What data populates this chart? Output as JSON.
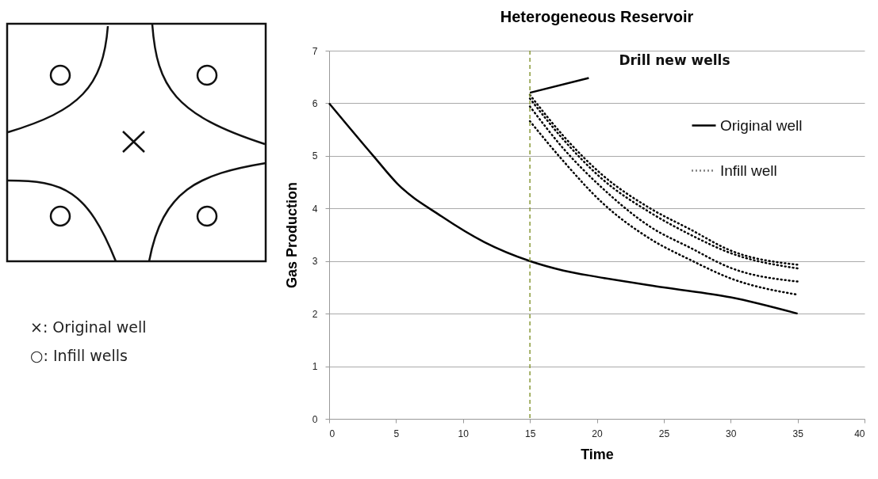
{
  "chart_data": {
    "type": "line",
    "title": "Heterogeneous Reservoir",
    "xlabel": "Time",
    "ylabel": "Gas Production",
    "xlim": [
      0,
      40
    ],
    "xticks": [
      0,
      5,
      10,
      15,
      20,
      25,
      30,
      35,
      40
    ],
    "ylim": [
      0,
      7
    ],
    "yticks": [
      0,
      1,
      2,
      3,
      4,
      5,
      6,
      7
    ],
    "grid": "y",
    "legend": "top right",
    "series": [
      {
        "name": "Original well",
        "color": "#000000",
        "line_style": "solid",
        "x": [
          0,
          3.3,
          5.1,
          8.4,
          11.6,
          15,
          17.5,
          20,
          25,
          30,
          35
        ],
        "values": [
          6,
          5.0,
          4.47,
          3.85,
          3.36,
          3.0,
          2.82,
          2.7,
          2.5,
          2.31,
          2.0
        ]
      },
      {
        "name": "Infill well",
        "color": "#000000",
        "line_style": "dotted",
        "x": [
          15,
          17.5,
          20.4,
          24,
          27,
          29.9,
          35
        ],
        "values": [
          6.16,
          5.38,
          4.64,
          4.0,
          3.6,
          3.21,
          2.93
        ]
      },
      {
        "color": "#000000",
        "line_style": "dotted",
        "x": [
          15,
          17.5,
          20.4,
          24,
          27,
          29.9,
          35
        ],
        "values": [
          6.09,
          5.31,
          4.56,
          3.92,
          3.5,
          3.16,
          2.86
        ]
      },
      {
        "color": "#000000",
        "line_style": "dotted",
        "x": [
          15,
          17.5,
          20.4,
          24,
          27,
          29.9,
          35
        ],
        "values": [
          5.94,
          5.14,
          4.39,
          3.65,
          3.25,
          2.88,
          2.61
        ]
      },
      {
        "color": "#000000",
        "line_style": "dotted",
        "x": [
          15,
          17.5,
          20.4,
          24,
          27,
          29.9,
          35
        ],
        "values": [
          5.66,
          4.9,
          4.11,
          3.42,
          3.02,
          2.68,
          2.36
        ]
      },
      {
        "color": "#000000",
        "line_style": "solid",
        "x": [
          15,
          19.4
        ],
        "values": [
          6.2,
          6.48
        ]
      }
    ],
    "ref_lines": [
      {
        "axis": "x",
        "value": 15,
        "color": "#8a9a3a",
        "line_style": "dashed"
      }
    ],
    "annotations": [
      "×: Original well",
      "○: Infill wells",
      {
        "text": "Drill new wells",
        "x": 19.4,
        "y": 6.48
      }
    ]
  }
}
